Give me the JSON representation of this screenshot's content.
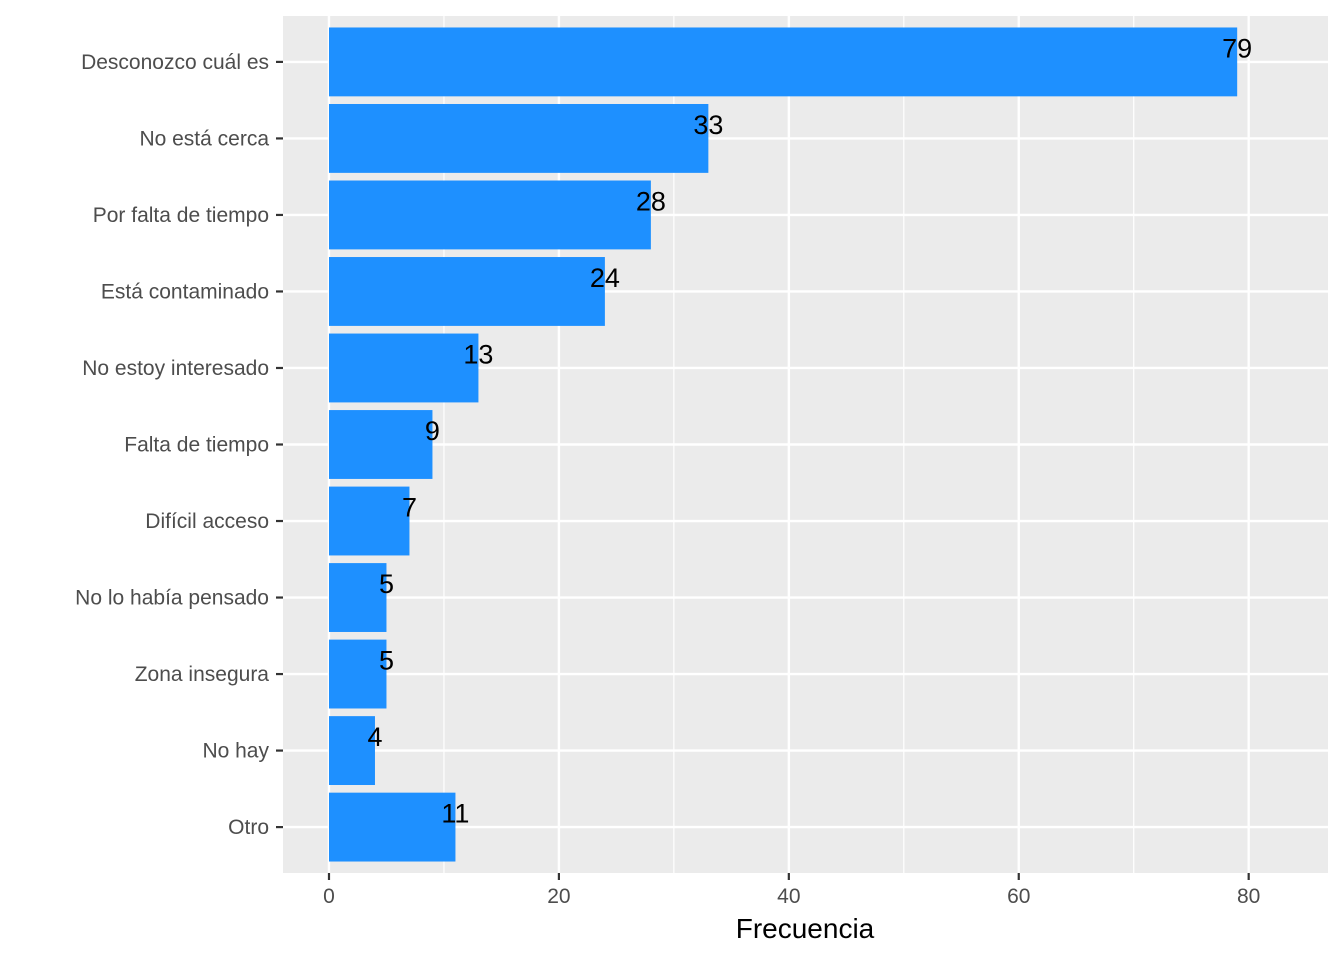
{
  "chart_data": {
    "type": "bar",
    "orientation": "horizontal",
    "categories": [
      "Desconozco cuál es",
      "No está cerca",
      "Por falta de tiempo",
      "Está contaminado",
      "No estoy interesado",
      "Falta de tiempo",
      "Difícil acceso",
      "No lo había pensado",
      "Zona insegura",
      "No hay",
      "Otro"
    ],
    "values": [
      79,
      33,
      28,
      24,
      13,
      9,
      7,
      5,
      5,
      4,
      11
    ],
    "data_labels": [
      "79",
      "33",
      "28",
      "24",
      "13",
      "9",
      "7",
      "5",
      "5",
      "4",
      "11"
    ],
    "xlabel": "Frecuencia",
    "ylabel": "",
    "xlim": [
      -4,
      86.9
    ],
    "x_ticks": [
      0,
      20,
      40,
      60,
      80
    ],
    "x_tick_labels": [
      "0",
      "20",
      "40",
      "60",
      "80"
    ],
    "grid": true,
    "bar_color": "#1E90FF",
    "panel_color": "#EBEBEB",
    "grid_color": "#FFFFFF"
  }
}
